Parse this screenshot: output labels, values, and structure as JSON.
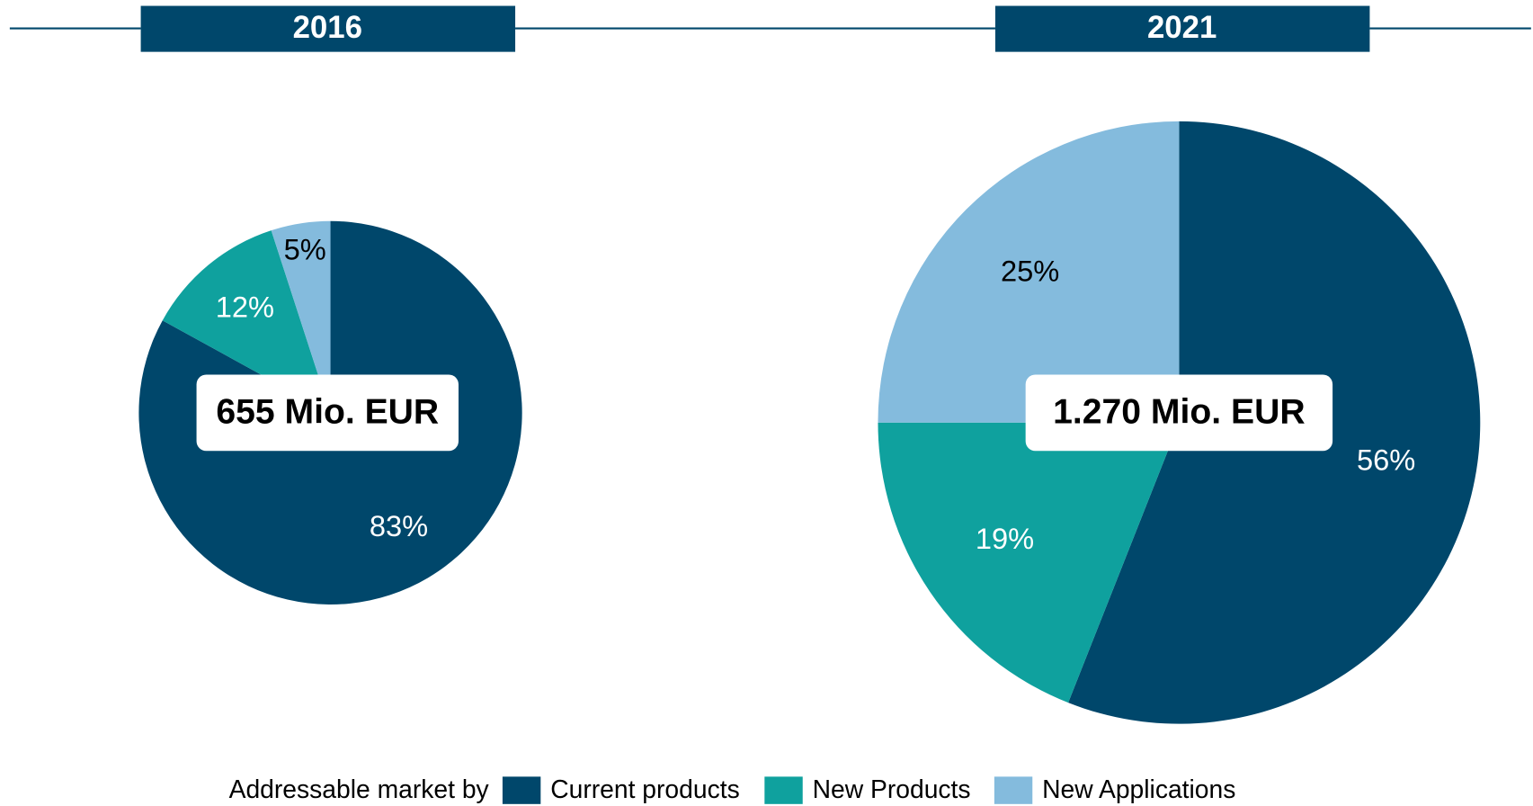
{
  "legend_title": "Addressable market by",
  "chart_data": [
    {
      "type": "pie",
      "title": "2016",
      "total_label": "655 Mio. EUR",
      "categories": [
        "Current products",
        "New Products",
        "New Applications"
      ],
      "values": [
        83,
        12,
        5
      ],
      "value_labels": [
        "83%",
        "12%",
        "5%"
      ],
      "colors": [
        "#00476b",
        "#0fa19e",
        "#84bbdd"
      ]
    },
    {
      "type": "pie",
      "title": "2021",
      "total_label": "1.270 Mio. EUR",
      "values": [
        56,
        19,
        25
      ],
      "value_labels": [
        "56%",
        "19%",
        "25%"
      ],
      "colors": [
        "#00476b",
        "#0fa19e",
        "#84bbdd"
      ]
    }
  ]
}
